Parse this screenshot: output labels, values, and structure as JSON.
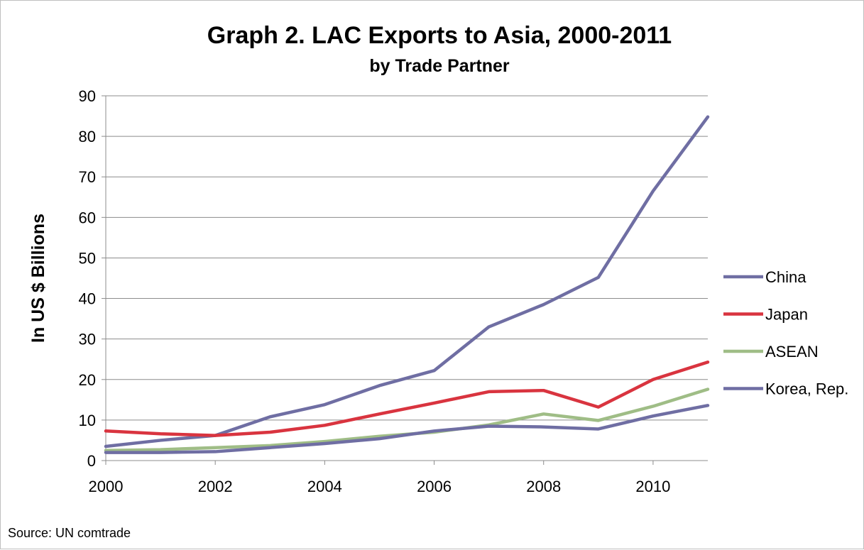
{
  "chart_data": {
    "type": "line",
    "title": "Graph 2. LAC Exports to Asia, 2000-2011",
    "subtitle": "by Trade Partner",
    "xlabel": "",
    "ylabel": "In US $ Billions",
    "x": [
      2000,
      2001,
      2002,
      2003,
      2004,
      2005,
      2006,
      2007,
      2008,
      2009,
      2010,
      2011
    ],
    "x_tick_labels": [
      "2000",
      "2002",
      "2004",
      "2006",
      "2008",
      "2010"
    ],
    "xlim": [
      2000,
      2011
    ],
    "ylim": [
      0,
      90
    ],
    "y_ticks": [
      0,
      10,
      20,
      30,
      40,
      50,
      60,
      70,
      80,
      90
    ],
    "grid": "horizontal",
    "legend_position": "right",
    "series": [
      {
        "name": "China",
        "color": "#6f6ea3",
        "values": [
          3.5,
          5,
          6.2,
          10.8,
          13.8,
          18.5,
          22.2,
          33,
          38.5,
          45.2,
          66.5,
          84.8
        ]
      },
      {
        "name": "Japan",
        "color": "#d9343f",
        "values": [
          7.3,
          6.6,
          6.2,
          7,
          8.7,
          11.5,
          14.2,
          17,
          17.3,
          13.2,
          20,
          24.3
        ]
      },
      {
        "name": "ASEAN",
        "color": "#9fbd86",
        "values": [
          2.5,
          2.7,
          3.2,
          3.7,
          4.7,
          6,
          7,
          8.8,
          11.5,
          9.9,
          13.4,
          17.6
        ]
      },
      {
        "name": "Korea, Rep.",
        "color": "#6f6ea3",
        "values": [
          2,
          2,
          2.2,
          3.2,
          4.2,
          5.4,
          7.3,
          8.5,
          8.3,
          7.8,
          11,
          13.6
        ]
      }
    ]
  },
  "source": "Source: UN comtrade"
}
